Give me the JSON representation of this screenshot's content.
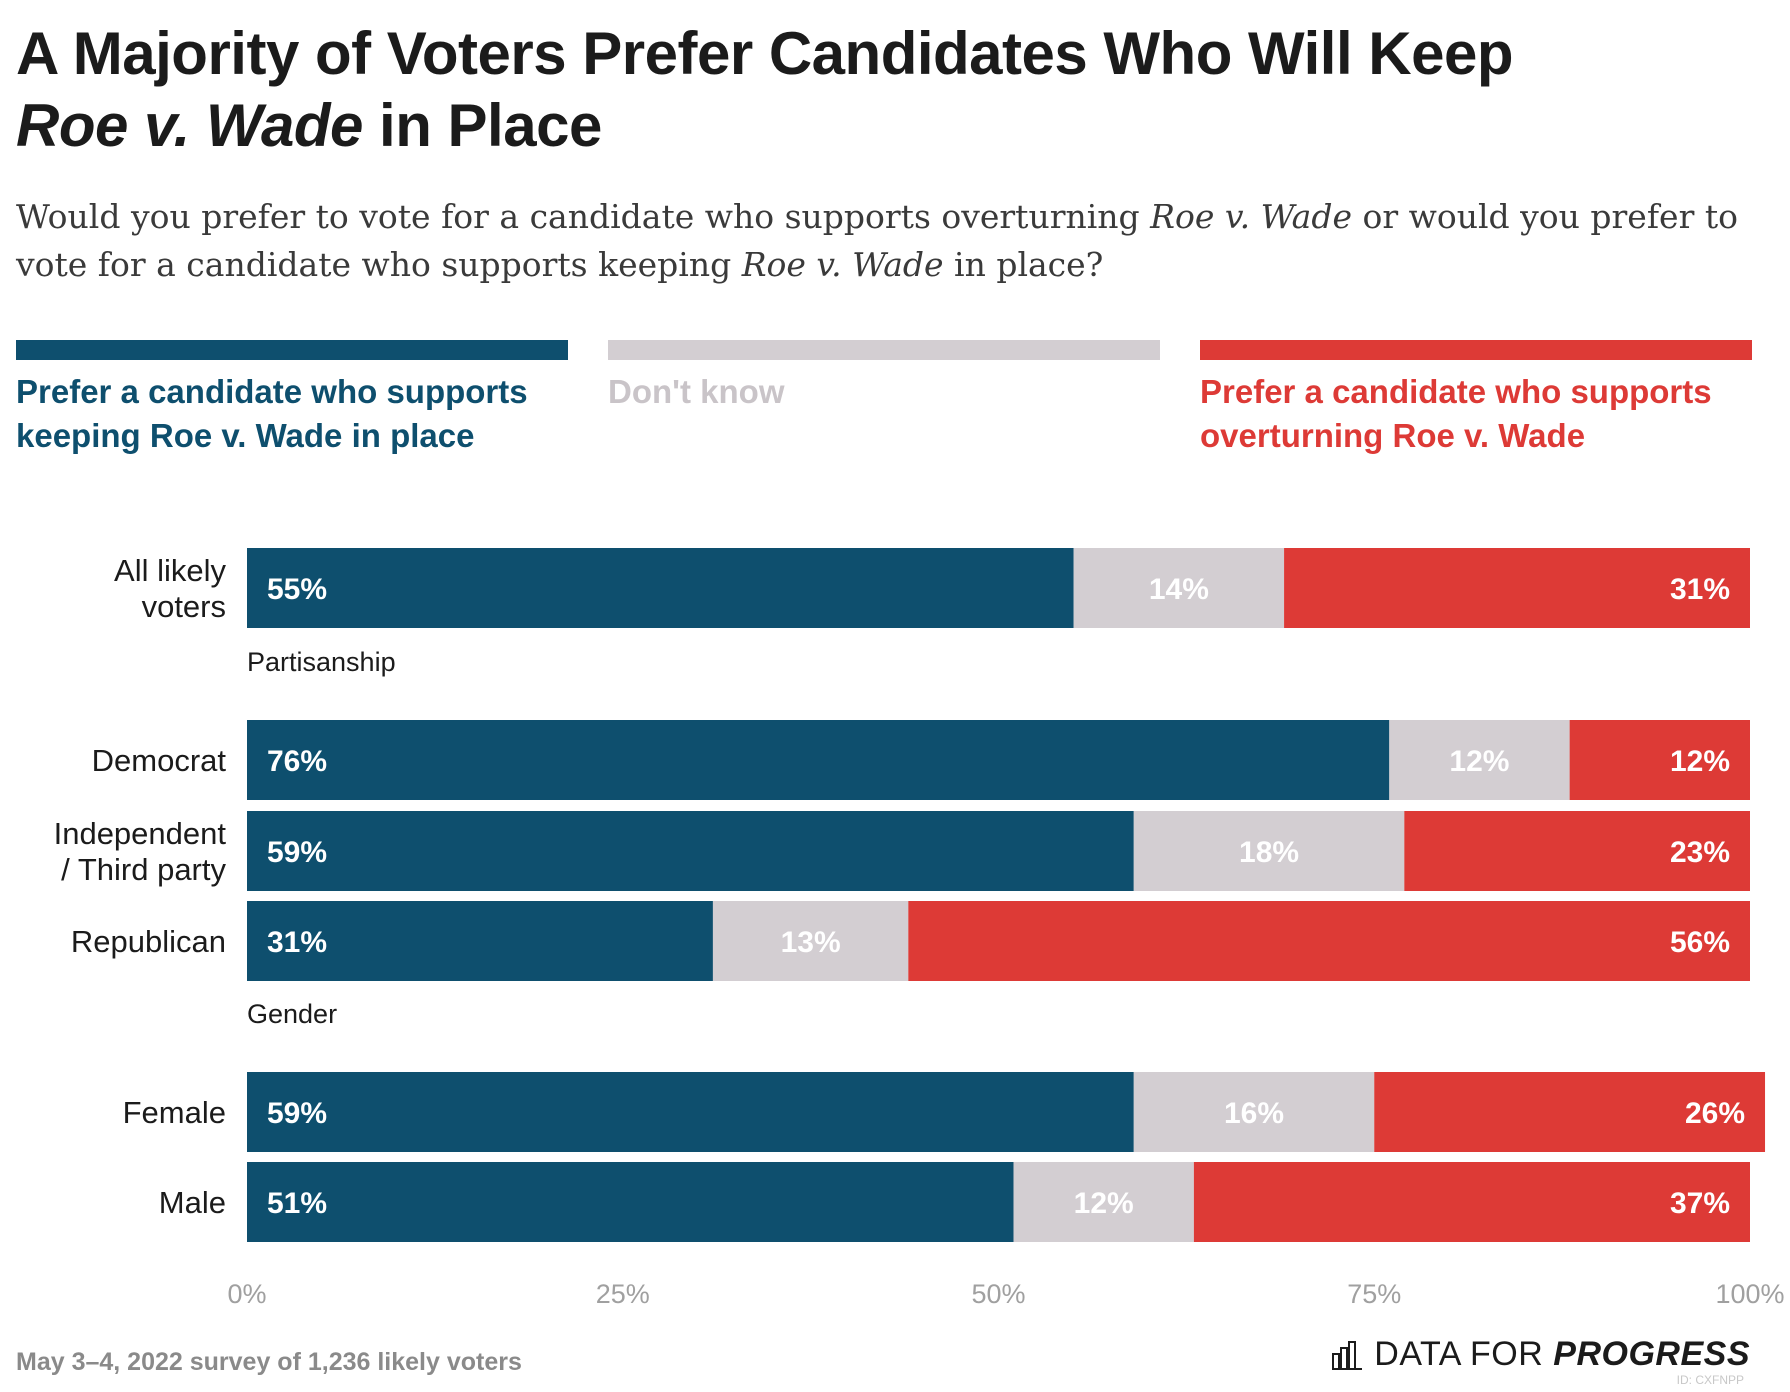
{
  "title_main": "A Majority of Voters Prefer Candidates Who Will Keep",
  "title_em": "Roe v. Wade",
  "title_tail": " in Place",
  "subtitle_part1": "Would you prefer to vote for a candidate who supports overturning ",
  "subtitle_em1": "Roe v. Wade",
  "subtitle_part2": " or would you prefer to vote for a candidate who supports keeping ",
  "subtitle_em2": "Roe v. Wade",
  "subtitle_part3": " in place?",
  "legend": [
    {
      "label": "Prefer a candidate who supports keeping Roe v. Wade in place",
      "color": "#0e4f6e"
    },
    {
      "label": "Don't know",
      "color": "#d3ced2"
    },
    {
      "label": "Prefer a candidate who supports overturning Roe v. Wade",
      "color": "#dd3a36"
    }
  ],
  "footnote": "May 3–4, 2022 survey of 1,236 likely voters",
  "logo_light": "DATA FOR",
  "logo_strong": "PROGRESS",
  "id_text": "ID: CXFNPP",
  "chart_data": {
    "type": "bar",
    "orientation": "horizontal",
    "stacked": true,
    "xlim": [
      0,
      100
    ],
    "xticks": [
      "0%",
      "25%",
      "50%",
      "75%",
      "100%"
    ],
    "series_names": [
      "Prefer a candidate who supports keeping Roe v. Wade in place",
      "Don't know",
      "Prefer a candidate who supports overturning Roe v. Wade"
    ],
    "series_colors": [
      "#0e4f6e",
      "#d3ced2",
      "#dd3a36"
    ],
    "rows": [
      {
        "type": "bar",
        "label": [
          "All likely",
          "voters"
        ],
        "values": [
          55,
          14,
          31
        ]
      },
      {
        "type": "section",
        "label": "Partisanship"
      },
      {
        "type": "bar",
        "label": [
          "Democrat"
        ],
        "values": [
          76,
          12,
          12
        ]
      },
      {
        "type": "bar",
        "label": [
          "Independent",
          "/ Third party"
        ],
        "values": [
          59,
          18,
          23
        ]
      },
      {
        "type": "bar",
        "label": [
          "Republican"
        ],
        "values": [
          31,
          13,
          56
        ]
      },
      {
        "type": "section",
        "label": "Gender"
      },
      {
        "type": "bar",
        "label": [
          "Female"
        ],
        "values": [
          59,
          16,
          26
        ]
      },
      {
        "type": "bar",
        "label": [
          "Male"
        ],
        "values": [
          51,
          12,
          37
        ]
      }
    ]
  }
}
